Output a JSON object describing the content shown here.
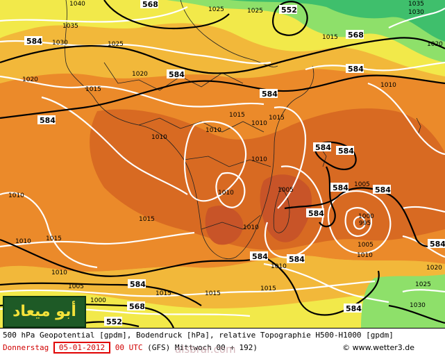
{
  "map": {
    "colors": {
      "green_light": "#8ee06a",
      "green_dark": "#3fbf6c",
      "yellow": "#f2e94a",
      "amber": "#f2b83a",
      "orange": "#eb8a2a",
      "dark_orange": "#d86a22",
      "red_orange": "#c85428",
      "contour_black": "#000000",
      "isobar_white": "#ffffff",
      "coast": "#222222"
    },
    "height_labels": [
      "568",
      "552",
      "568",
      "584",
      "584",
      "584",
      "584",
      "584",
      "584",
      "584",
      "584",
      "584",
      "584",
      "584",
      "584",
      "584",
      "568",
      "552"
    ],
    "isobar_labels": [
      "1040",
      "1035",
      "1030",
      "1025",
      "1025",
      "1020",
      "1025",
      "1020",
      "1015",
      "1015",
      "1010",
      "1010",
      "1015",
      "1010",
      "1010",
      "1010",
      "1015",
      "1010",
      "1005",
      "1005",
      "1000",
      "995",
      "1005",
      "1010",
      "1010",
      "1010",
      "1015",
      "1015",
      "1010",
      "1020",
      "1025",
      "1030",
      "1015",
      "1015",
      "1035",
      "1030",
      "1010",
      "1015",
      "1020",
      "1010",
      "1005",
      "1000"
    ]
  },
  "caption": {
    "line1": "500 hPa Geopotential [gpdm], Bodendruck [hPa], relative Topographie H500-H1000 [gpdm]",
    "day": "Donnerstag",
    "date": "05-01-2012",
    "time": "00 UTC",
    "run": "(GFS)",
    "valid": "Mittwoch 00 + 192)",
    "copyright": "© www.wetter3.de"
  },
  "watermark": {
    "text": "أبو ميعاد",
    "site": "alsbrar.com"
  }
}
